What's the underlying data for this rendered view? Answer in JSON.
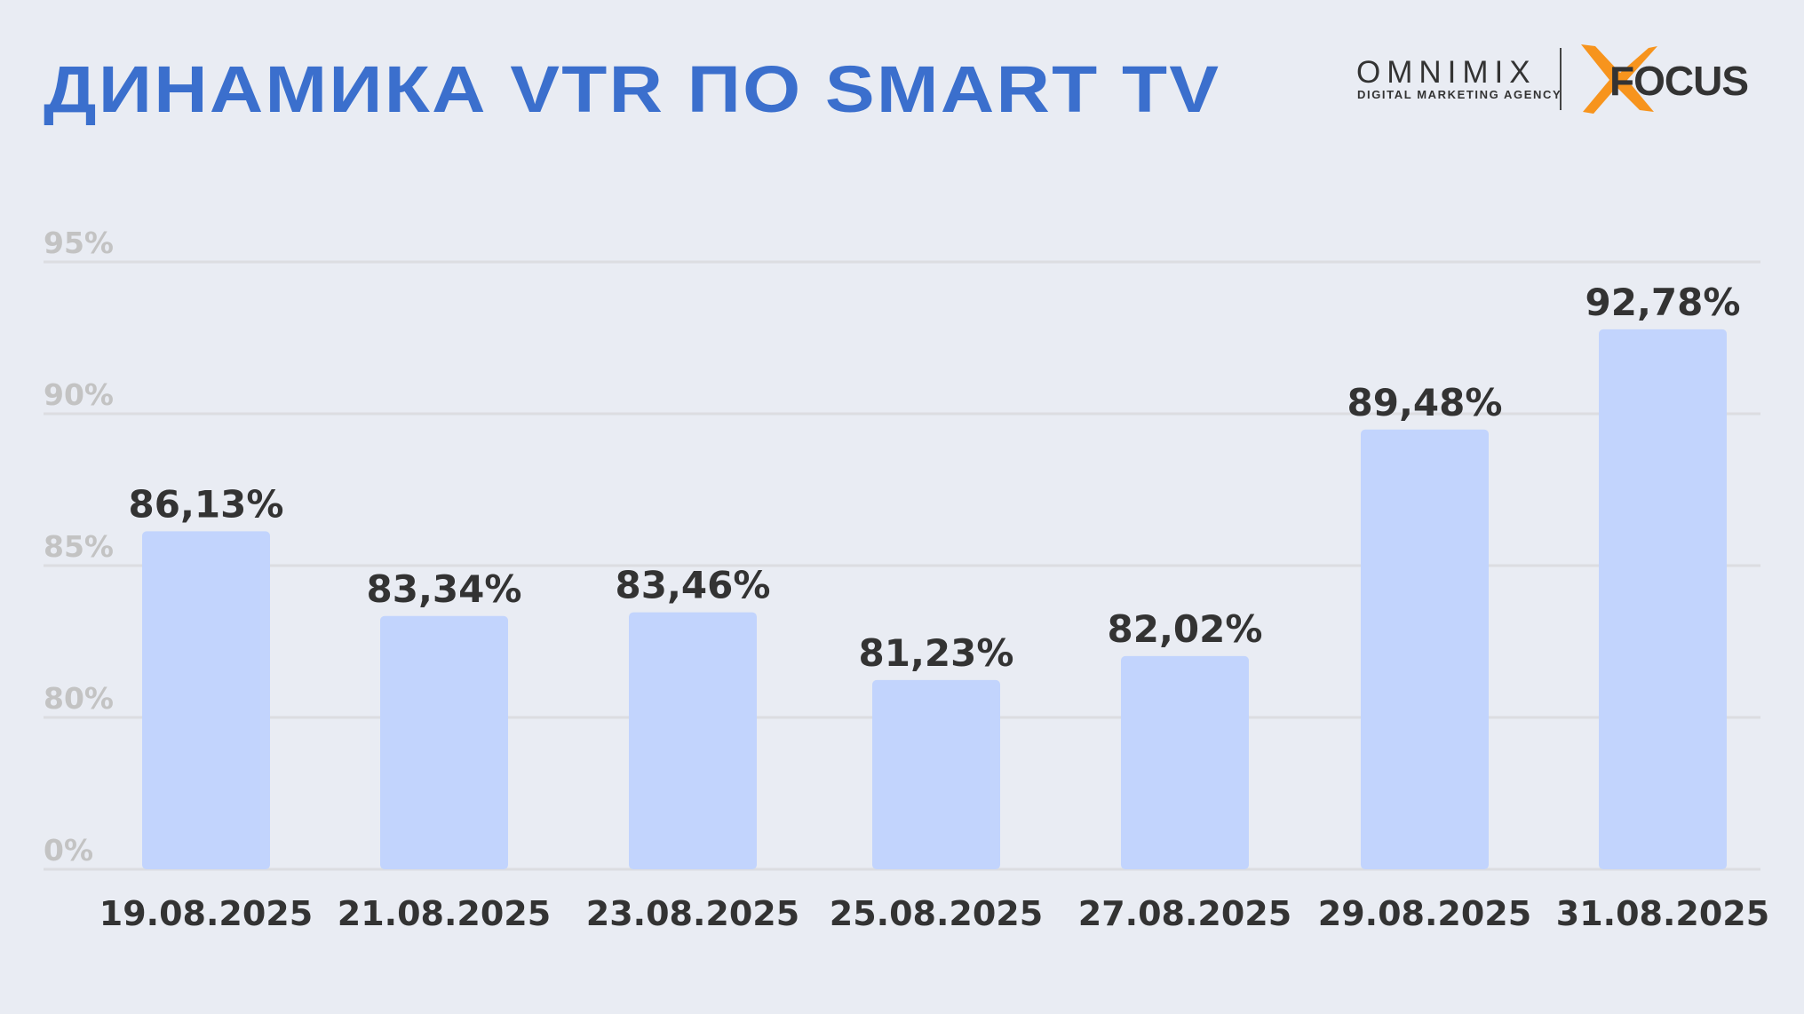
{
  "header": {
    "title": "ДИНАМИКА VTR ПО SMART TV",
    "logo_omnimix": "OMNIMIX",
    "logo_tagline": "DIGITAL MARKETING AGENCY",
    "logo_focus": "FOCUS"
  },
  "colors": {
    "title": "#3b6fcd",
    "bar": "#c2d4fd",
    "text": "#333333",
    "grid": "#dcdde1",
    "tick": "#c3c3c3",
    "accent": "#f7941d"
  },
  "chart_data": {
    "type": "bar",
    "title": "",
    "xlabel": "",
    "ylabel": "",
    "categories": [
      "19.08.2025",
      "21.08.2025",
      "23.08.2025",
      "25.08.2025",
      "27.08.2025",
      "29.08.2025",
      "31.08.2025"
    ],
    "values": [
      86.13,
      83.34,
      83.46,
      81.23,
      82.02,
      89.48,
      92.78
    ],
    "data_labels": [
      "86,13%",
      "83,34%",
      "83,46%",
      "81,23%",
      "82,02%",
      "89,48%",
      "92,78%"
    ],
    "yticks": [
      0,
      80,
      85,
      90,
      95
    ],
    "ytick_labels": [
      "0%",
      "80%",
      "85%",
      "90%",
      "95%"
    ],
    "axis_break": "between 0% and 80%",
    "ylim": [
      80,
      95
    ],
    "grid": true
  }
}
